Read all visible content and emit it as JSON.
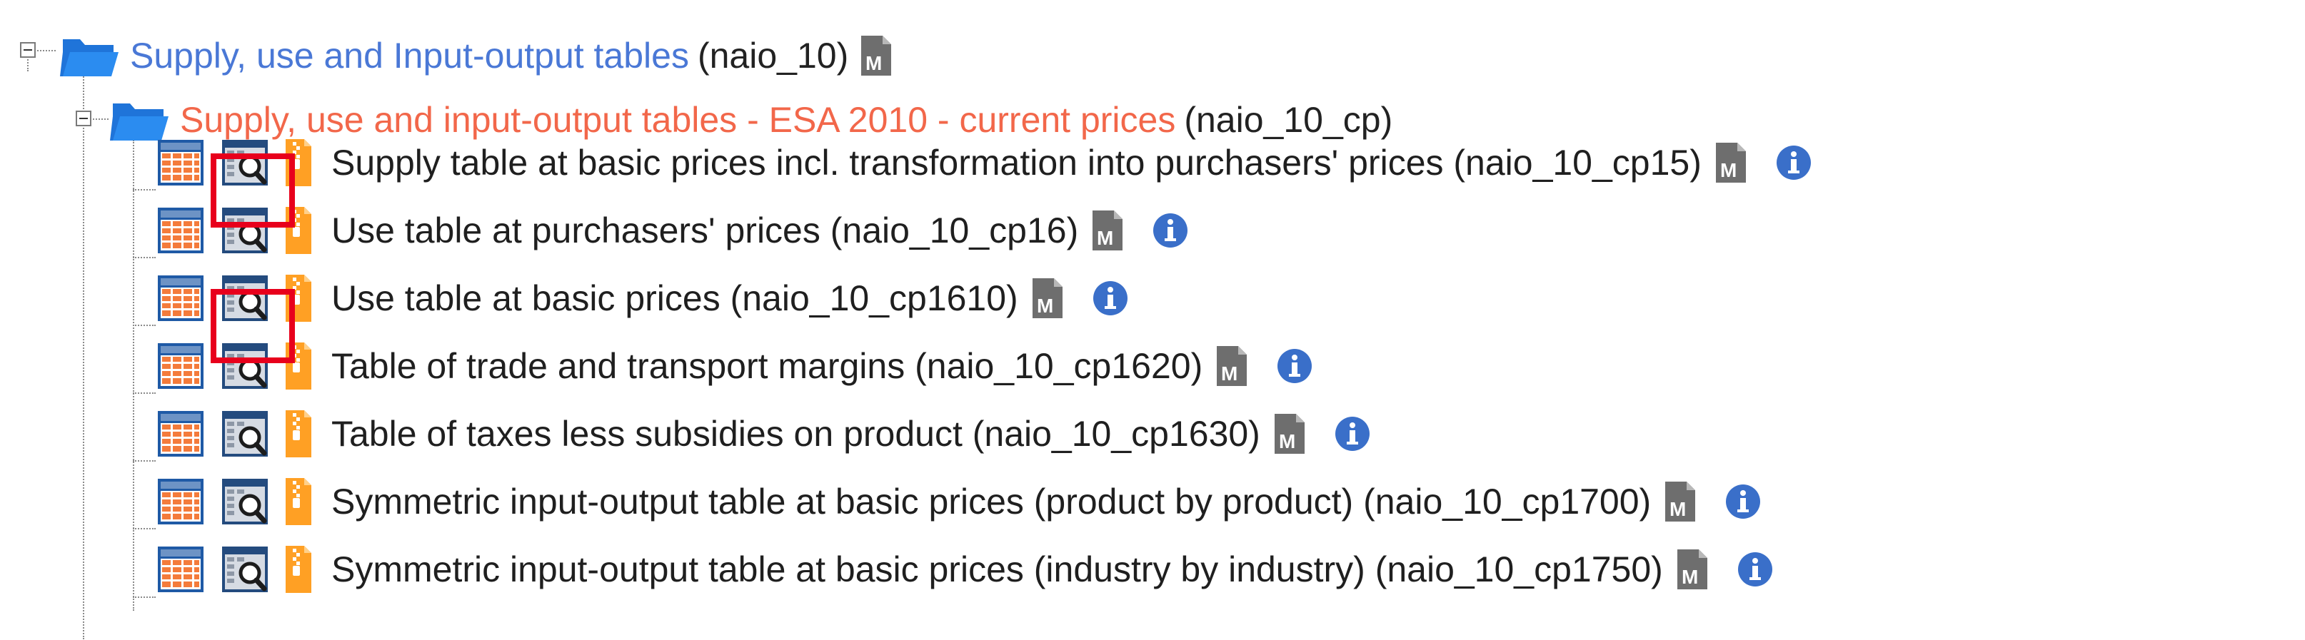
{
  "tree": {
    "root": {
      "title": "Supply, use and Input-output tables",
      "code": "(naio_10)",
      "metadata_icon": "metadata-m-icon"
    },
    "sub": {
      "title": "Supply, use and input-output tables - ESA 2010 - current prices",
      "code": "(naio_10_cp)"
    },
    "leaves": [
      {
        "label": "Supply table at basic prices incl. transformation into purchasers' prices (naio_10_cp15)"
      },
      {
        "label": "Use table at purchasers' prices (naio_10_cp16)"
      },
      {
        "label": "Use table at basic prices (naio_10_cp1610)"
      },
      {
        "label": "Table of trade and transport margins (naio_10_cp1620)"
      },
      {
        "label": "Table of taxes less subsidies on product (naio_10_cp1630)"
      },
      {
        "label": "Symmetric input-output table at basic prices (product by product) (naio_10_cp1700)"
      },
      {
        "label": "Symmetric input-output table at basic prices (industry by industry) (naio_10_cp1750)"
      }
    ],
    "icons": {
      "table": "table-grid-icon",
      "explore": "data-explorer-magnifier-icon",
      "download": "zip-download-icon",
      "metadata": "metadata-m-icon",
      "info": "info-icon"
    },
    "highlighted_rows": [
      0,
      2
    ],
    "colors": {
      "link": "#4a78d6",
      "active_link": "#f2674a",
      "highlight": "#e8001c",
      "info": "#3a6fc9",
      "table_orange": "#f47b3b",
      "table_blue": "#1f5aa6",
      "zip_orange": "#ffa024"
    }
  }
}
